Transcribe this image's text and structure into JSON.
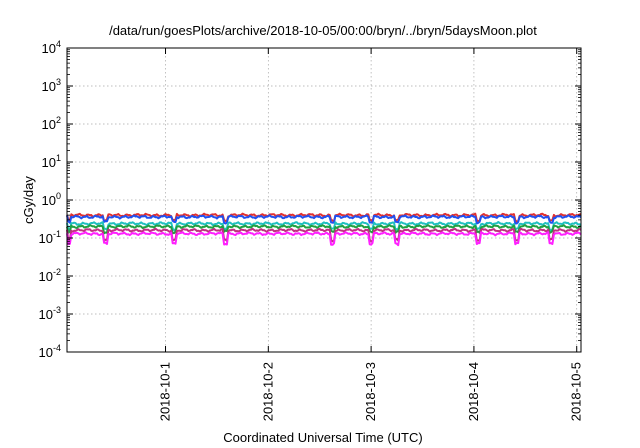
{
  "chart_data": {
    "type": "line",
    "title": "/data/run/goesPlots/archive/2018-10-05/00:00/bryn/../bryn/5daysMoon.plot",
    "xlabel": "Coordinated Universal Time (UTC)",
    "ylabel": "cGy/day",
    "y_scale": "log",
    "ylim": [
      0.0001,
      10000
    ],
    "y_ticks": [
      {
        "value": 0.0001,
        "base": "10",
        "exp": "-4"
      },
      {
        "value": 0.001,
        "base": "10",
        "exp": "-3"
      },
      {
        "value": 0.01,
        "base": "10",
        "exp": "-2"
      },
      {
        "value": 0.1,
        "base": "10",
        "exp": "-1"
      },
      {
        "value": 1,
        "base": "10",
        "exp": "0"
      },
      {
        "value": 10,
        "base": "10",
        "exp": "1"
      },
      {
        "value": 100,
        "base": "10",
        "exp": "2"
      },
      {
        "value": 1000,
        "base": "10",
        "exp": "3"
      },
      {
        "value": 10000,
        "base": "10",
        "exp": "4"
      }
    ],
    "xlim": [
      "2018-09-30T01:00",
      "2018-10-05T01:00"
    ],
    "x_ticks": [
      "2018-10-1",
      "2018-10-2",
      "2018-10-3",
      "2018-10-4",
      "2018-10-5"
    ],
    "x_tick_values": [
      "2018-10-01T00:00",
      "2018-10-02T00:00",
      "2018-10-03T00:00",
      "2018-10-04T00:00",
      "2018-10-05T00:00"
    ],
    "grid": true,
    "legend": "none",
    "dip_times": [
      "2018-09-30T01:30",
      "2018-09-30T10:00",
      "2018-10-01T02:00",
      "2018-10-01T14:00",
      "2018-10-02T15:00",
      "2018-10-03T00:00",
      "2018-10-03T06:00",
      "2018-10-04T01:00",
      "2018-10-04T10:00",
      "2018-10-04T18:00"
    ],
    "series": [
      {
        "color": "#e03030",
        "base_value": 0.4
      },
      {
        "color": "#2050f0",
        "base_value": 0.36
      },
      {
        "color": "#20c0c0",
        "base_value": 0.24
      },
      {
        "color": "#20a040",
        "base_value": 0.2
      },
      {
        "color": "#c03080",
        "base_value": 0.16
      },
      {
        "color": "#ff20ff",
        "base_value": 0.13
      }
    ]
  }
}
